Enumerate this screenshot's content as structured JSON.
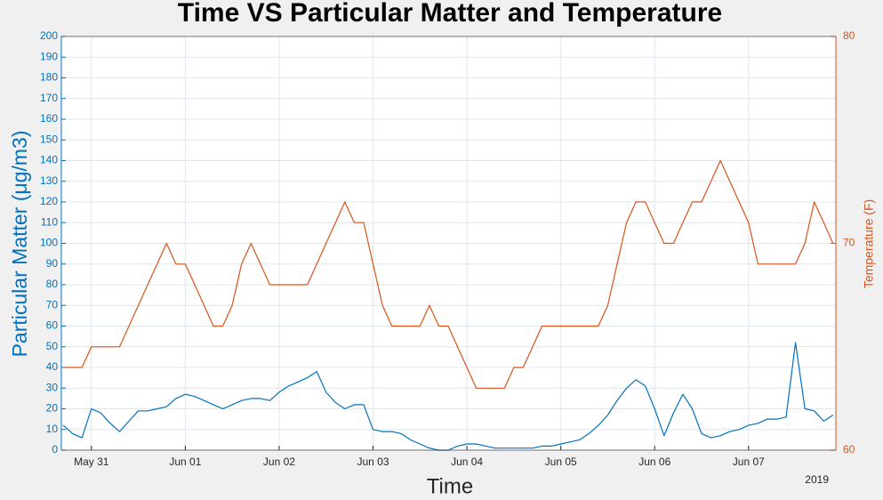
{
  "chart_data": {
    "type": "line",
    "title": "Time VS Particular Matter and Temperature",
    "xlabel": "Time",
    "x_secondary_label": "2019",
    "ylabel": "Particular Matter (μg/m3)",
    "y2label": "Temperature (F)",
    "x": [
      -0.3,
      -0.2,
      -0.1,
      0,
      0.1,
      0.2,
      0.3,
      0.4,
      0.5,
      0.6,
      0.7,
      0.8,
      0.9,
      1,
      1.1,
      1.2,
      1.3,
      1.4,
      1.5,
      1.6,
      1.7,
      1.8,
      1.9,
      2,
      2.1,
      2.2,
      2.3,
      2.4,
      2.5,
      2.6,
      2.7,
      2.8,
      2.9,
      3,
      3.1,
      3.2,
      3.3,
      3.4,
      3.5,
      3.6,
      3.7,
      3.8,
      3.9,
      4,
      4.1,
      4.2,
      4.3,
      4.4,
      4.5,
      4.6,
      4.7,
      4.8,
      4.9,
      5,
      5.1,
      5.2,
      5.3,
      5.4,
      5.5,
      5.6,
      5.7,
      5.8,
      5.9,
      6,
      6.1,
      6.2,
      6.3,
      6.4,
      6.5,
      6.6,
      6.7,
      6.8,
      6.9,
      7,
      7.1,
      7.2,
      7.3,
      7.4,
      7.5,
      7.6,
      7.7,
      7.8,
      7.9
    ],
    "series": [
      {
        "name": "Particular Matter",
        "color": "#0072bd",
        "axis": "y",
        "values": [
          12,
          8,
          6,
          20,
          18,
          13,
          9,
          14,
          19,
          19,
          20,
          21,
          25,
          27,
          26,
          24,
          22,
          20,
          22,
          24,
          25,
          25,
          24,
          28,
          31,
          33,
          35,
          38,
          28,
          23,
          20,
          22,
          22,
          10,
          9,
          9,
          8,
          5,
          3,
          1,
          0,
          0,
          2,
          3,
          3,
          2,
          1,
          1,
          1,
          1,
          1,
          2,
          2,
          3,
          4,
          5,
          8,
          12,
          17,
          24,
          30,
          34,
          31,
          20,
          7,
          18,
          27,
          20,
          8,
          6,
          7,
          9,
          10,
          12,
          13,
          15,
          15,
          16,
          52,
          20,
          19,
          14,
          17
        ]
      },
      {
        "name": "Temperature",
        "color": "#d95319",
        "axis": "y2",
        "values": [
          64,
          64,
          64,
          65,
          65,
          65,
          65,
          66,
          67,
          68,
          69,
          70,
          69,
          69,
          68,
          67,
          66,
          66,
          67,
          69,
          70,
          69,
          68,
          68,
          68,
          68,
          68,
          69,
          70,
          71,
          72,
          71,
          71,
          69,
          67,
          66,
          66,
          66,
          66,
          67,
          66,
          66,
          65,
          64,
          63,
          63,
          63,
          63,
          64,
          64,
          65,
          66,
          66,
          66,
          66,
          66,
          66,
          66,
          67,
          69,
          71,
          72,
          72,
          71,
          70,
          70,
          71,
          72,
          72,
          73,
          74,
          73,
          72,
          71,
          69,
          69,
          69,
          69,
          69,
          70,
          72,
          71,
          70
        ]
      }
    ],
    "xlim": [
      -0.32,
      7.93
    ],
    "xticks": [
      {
        "value": 0,
        "label": "May 31"
      },
      {
        "value": 1,
        "label": "Jun 01"
      },
      {
        "value": 2,
        "label": "Jun 02"
      },
      {
        "value": 3,
        "label": "Jun 03"
      },
      {
        "value": 4,
        "label": "Jun 04"
      },
      {
        "value": 5,
        "label": "Jun 05"
      },
      {
        "value": 6,
        "label": "Jun 06"
      },
      {
        "value": 7,
        "label": "Jun 07"
      }
    ],
    "ylim": [
      0,
      200
    ],
    "yticks": [
      0,
      10,
      20,
      30,
      40,
      50,
      60,
      70,
      80,
      90,
      100,
      110,
      120,
      130,
      140,
      150,
      160,
      170,
      180,
      190,
      200
    ],
    "y2lim": [
      60,
      80
    ],
    "y2ticks": [
      60,
      70,
      80
    ],
    "grid": true
  }
}
